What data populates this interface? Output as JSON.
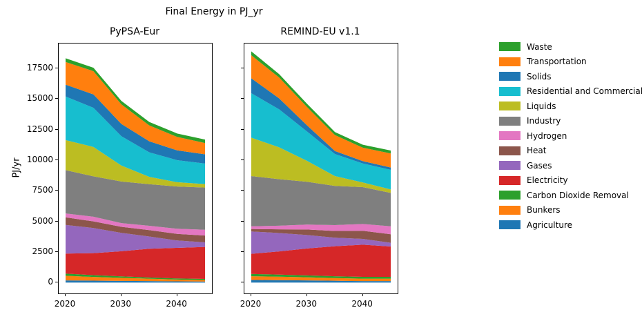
{
  "chart_data": {
    "type": "area",
    "stacked": true,
    "title": "Final Energy in PJ_yr",
    "ylabel": "PJ/yr",
    "x": [
      2020,
      2025,
      2030,
      2035,
      2040,
      2045
    ],
    "xticks": [
      2020,
      2030,
      2040
    ],
    "yticks": [
      0,
      2500,
      5000,
      7500,
      10000,
      12500,
      15000,
      17500
    ],
    "ylim": [
      -885,
      19530
    ],
    "grid": false,
    "legend_position": "right",
    "legend": [
      {
        "label": "Waste",
        "color": "#2ca02c"
      },
      {
        "label": "Transportation",
        "color": "#ff7f0e"
      },
      {
        "label": "Solids",
        "color": "#1f77b4"
      },
      {
        "label": "Residential and Commercial",
        "color": "#17becf"
      },
      {
        "label": "Liquids",
        "color": "#bcbd22"
      },
      {
        "label": "Industry",
        "color": "#7f7f7f"
      },
      {
        "label": "Hydrogen",
        "color": "#e377c2"
      },
      {
        "label": "Heat",
        "color": "#8c564b"
      },
      {
        "label": "Gases",
        "color": "#9467bd"
      },
      {
        "label": "Electricity",
        "color": "#d62728"
      },
      {
        "label": "Carbon Dioxide Removal",
        "color": "#2ca02c"
      },
      {
        "label": "Bunkers",
        "color": "#ff7f0e"
      },
      {
        "label": "Agriculture",
        "color": "#1f77b4"
      }
    ],
    "subplots": [
      {
        "title": "PyPSA-Eur",
        "series": [
          {
            "name": "Agriculture",
            "color": "#1f77b4",
            "values": [
              180,
              160,
              140,
              120,
              100,
              90
            ]
          },
          {
            "name": "Bunkers",
            "color": "#ff7f0e",
            "values": [
              380,
              300,
              250,
              200,
              150,
              120
            ]
          },
          {
            "name": "Carbon Dioxide Removal",
            "color": "#2ca02c",
            "values": [
              180,
              150,
              120,
              100,
              90,
              90
            ]
          },
          {
            "name": "Electricity",
            "color": "#d62728",
            "values": [
              1630,
              1800,
              2050,
              2350,
              2500,
              2615
            ]
          },
          {
            "name": "Gases",
            "color": "#9467bd",
            "values": [
              2340,
              2050,
              1500,
              1000,
              600,
              370
            ]
          },
          {
            "name": "Heat",
            "color": "#8c564b",
            "values": [
              620,
              540,
              500,
              520,
              540,
              560
            ]
          },
          {
            "name": "Hydrogen",
            "color": "#e377c2",
            "values": [
              320,
              380,
              300,
              350,
              420,
              470
            ]
          },
          {
            "name": "Industry",
            "color": "#7f7f7f",
            "values": [
              3540,
              3300,
              3400,
              3400,
              3450,
              3450
            ]
          },
          {
            "name": "Liquids",
            "color": "#bcbd22",
            "values": [
              2450,
              2400,
              1300,
              600,
              350,
              280
            ]
          },
          {
            "name": "Residential and Commercial",
            "color": "#17becf",
            "values": [
              3560,
              3200,
              2400,
              2000,
              1800,
              1680
            ]
          },
          {
            "name": "Solids",
            "color": "#1f77b4",
            "values": [
              970,
              1090,
              1000,
              900,
              800,
              750
            ]
          },
          {
            "name": "Transportation",
            "color": "#ff7f0e",
            "values": [
              1855,
              1900,
              1600,
              1300,
              1100,
              930
            ]
          },
          {
            "name": "Waste",
            "color": "#2ca02c",
            "values": [
              300,
              280,
              280,
              280,
              280,
              280
            ]
          }
        ]
      },
      {
        "title": "REMIND-EU v1.1",
        "series": [
          {
            "name": "Agriculture",
            "color": "#1f77b4",
            "values": [
              220,
              200,
              180,
              150,
              120,
              120
            ]
          },
          {
            "name": "Bunkers",
            "color": "#ff7f0e",
            "values": [
              300,
              280,
              250,
              220,
              200,
              200
            ]
          },
          {
            "name": "Carbon Dioxide Removal",
            "color": "#2ca02c",
            "values": [
              190,
              170,
              160,
              150,
              150,
              150
            ]
          },
          {
            "name": "Electricity",
            "color": "#d62728",
            "values": [
              1640,
              1900,
              2200,
              2450,
              2630,
              2480
            ]
          },
          {
            "name": "Gases",
            "color": "#9467bd",
            "values": [
              1830,
              1500,
              1100,
              700,
              470,
              300
            ]
          },
          {
            "name": "Heat",
            "color": "#8c564b",
            "values": [
              200,
              300,
              450,
              550,
              660,
              700
            ]
          },
          {
            "name": "Hydrogen",
            "color": "#e377c2",
            "values": [
              220,
              300,
              400,
              480,
              560,
              650
            ]
          },
          {
            "name": "Industry",
            "color": "#7f7f7f",
            "values": [
              4100,
              3800,
              3500,
              3200,
              3010,
              2730
            ]
          },
          {
            "name": "Liquids",
            "color": "#bcbd22",
            "values": [
              3140,
              2600,
              1700,
              800,
              380,
              280
            ]
          },
          {
            "name": "Residential and Commercial",
            "color": "#17becf",
            "values": [
              3630,
              3100,
              2400,
              1800,
              1550,
              1600
            ]
          },
          {
            "name": "Solids",
            "color": "#1f77b4",
            "values": [
              1220,
              900,
              500,
              250,
              190,
              190
            ]
          },
          {
            "name": "Transportation",
            "color": "#ff7f0e",
            "values": [
              1880,
              1700,
              1500,
              1300,
              1100,
              1150
            ]
          },
          {
            "name": "Waste",
            "color": "#2ca02c",
            "values": [
              320,
              280,
              260,
              250,
              240,
              240
            ]
          }
        ]
      }
    ]
  }
}
